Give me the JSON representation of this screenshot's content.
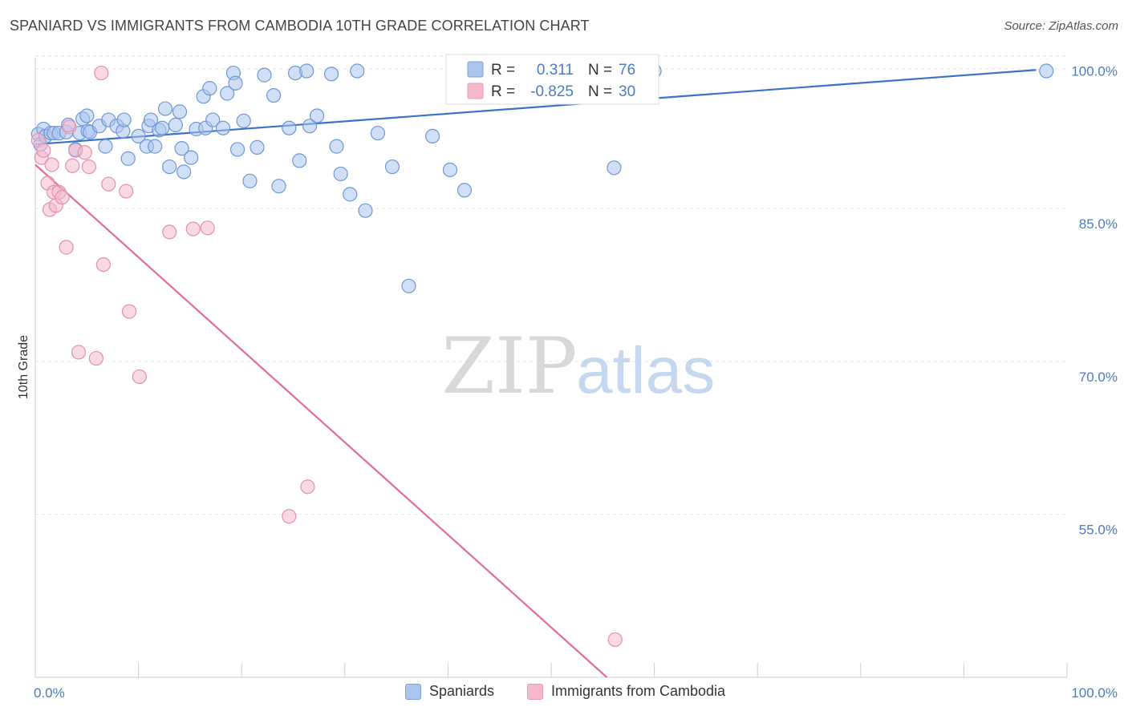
{
  "header": {
    "title": "SPANIARD VS IMMIGRANTS FROM CAMBODIA 10TH GRADE CORRELATION CHART",
    "source": "Source: ZipAtlas.com"
  },
  "watermark": {
    "zip": "ZIP",
    "atlas": "atlas"
  },
  "colors": {
    "blue": "#4a7cc4",
    "blue_fill": "#aac4ee",
    "blue_line": "#3a72c8",
    "pink_fill": "#f4b9cc",
    "pink_line": "#e46d96",
    "grid": "#e6e6e6"
  },
  "legend": {
    "rows": [
      {
        "r_label": "R =",
        "r_value": "0.311",
        "n_label": "N =",
        "n_value": "76"
      },
      {
        "r_label": "R =",
        "r_value": "-0.825",
        "n_label": "N =",
        "n_value": "30"
      }
    ]
  },
  "bottom_legend": [
    "Spaniards",
    "Immigrants from Cambodia"
  ],
  "chart_data": {
    "type": "scatter",
    "title": "SPANIARD VS IMMIGRANTS FROM CAMBODIA 10TH GRADE CORRELATION CHART",
    "xlabel": "",
    "ylabel": "10th Grade",
    "x_tick_labels": [
      "0.0%",
      "100.0%"
    ],
    "y_tick_labels": [
      "100.0%",
      "85.0%",
      "70.0%",
      "55.0%"
    ],
    "y_ticks": [
      100,
      85,
      70,
      55
    ],
    "xlim": [
      0,
      100
    ],
    "ylim": [
      40.5,
      101.3
    ],
    "grid": true,
    "series": [
      {
        "name": "Spaniards",
        "points": [
          [
            0.3,
            93.8
          ],
          [
            0.5,
            92.8
          ],
          [
            0.8,
            94.3
          ],
          [
            1.0,
            93.6
          ],
          [
            1.5,
            93.9
          ],
          [
            1.8,
            93.9
          ],
          [
            2.3,
            93.9
          ],
          [
            3.0,
            94.0
          ],
          [
            3.2,
            94.7
          ],
          [
            3.9,
            92.3
          ],
          [
            4.3,
            93.9
          ],
          [
            4.6,
            95.3
          ],
          [
            5.0,
            95.6
          ],
          [
            5.1,
            94.1
          ],
          [
            5.3,
            94.0
          ],
          [
            6.2,
            94.6
          ],
          [
            6.8,
            92.6
          ],
          [
            7.1,
            95.2
          ],
          [
            7.9,
            94.6
          ],
          [
            8.5,
            94.1
          ],
          [
            8.6,
            95.2
          ],
          [
            9.0,
            91.4
          ],
          [
            10.0,
            93.6
          ],
          [
            10.8,
            92.6
          ],
          [
            11.0,
            94.6
          ],
          [
            11.2,
            95.2
          ],
          [
            11.6,
            92.6
          ],
          [
            12.0,
            94.2
          ],
          [
            12.3,
            94.4
          ],
          [
            12.6,
            96.3
          ],
          [
            13.0,
            90.6
          ],
          [
            13.6,
            94.7
          ],
          [
            14.0,
            96.0
          ],
          [
            14.2,
            92.4
          ],
          [
            14.4,
            90.1
          ],
          [
            15.1,
            91.5
          ],
          [
            15.6,
            94.3
          ],
          [
            16.3,
            97.5
          ],
          [
            16.5,
            94.4
          ],
          [
            16.9,
            98.3
          ],
          [
            17.2,
            95.2
          ],
          [
            18.2,
            94.4
          ],
          [
            18.6,
            97.8
          ],
          [
            19.2,
            99.8
          ],
          [
            19.4,
            98.8
          ],
          [
            19.6,
            92.3
          ],
          [
            20.2,
            95.1
          ],
          [
            20.8,
            89.2
          ],
          [
            21.5,
            92.5
          ],
          [
            22.2,
            99.6
          ],
          [
            23.1,
            97.6
          ],
          [
            23.6,
            88.7
          ],
          [
            24.6,
            94.4
          ],
          [
            25.2,
            99.8
          ],
          [
            25.6,
            91.2
          ],
          [
            26.3,
            100.0
          ],
          [
            26.6,
            94.6
          ],
          [
            27.3,
            95.6
          ],
          [
            28.7,
            99.7
          ],
          [
            29.2,
            92.6
          ],
          [
            29.6,
            89.9
          ],
          [
            30.5,
            87.9
          ],
          [
            31.2,
            100.0
          ],
          [
            32.0,
            86.3
          ],
          [
            33.2,
            93.9
          ],
          [
            34.6,
            90.6
          ],
          [
            36.2,
            78.9
          ],
          [
            38.5,
            93.6
          ],
          [
            40.2,
            90.3
          ],
          [
            41.6,
            88.3
          ],
          [
            43.5,
            99.8
          ],
          [
            49.8,
            99.2
          ],
          [
            53.5,
            97.8
          ],
          [
            56.1,
            90.5
          ],
          [
            60.0,
            100.0
          ],
          [
            98.0,
            100.0
          ]
        ],
        "trend": {
          "x": [
            0,
            97
          ],
          "y": [
            92.8,
            100.1
          ]
        }
      },
      {
        "name": "Immigrants from Cambodia",
        "points": [
          [
            0.3,
            93.2
          ],
          [
            0.6,
            91.5
          ],
          [
            0.8,
            92.2
          ],
          [
            1.2,
            89.0
          ],
          [
            1.4,
            86.4
          ],
          [
            1.6,
            90.8
          ],
          [
            1.8,
            88.1
          ],
          [
            2.0,
            86.8
          ],
          [
            2.3,
            88.1
          ],
          [
            2.6,
            87.6
          ],
          [
            3.0,
            82.7
          ],
          [
            3.3,
            94.5
          ],
          [
            3.6,
            90.7
          ],
          [
            3.9,
            92.2
          ],
          [
            4.2,
            72.4
          ],
          [
            4.8,
            92.0
          ],
          [
            5.2,
            90.6
          ],
          [
            5.9,
            71.8
          ],
          [
            6.4,
            99.8
          ],
          [
            6.6,
            81.0
          ],
          [
            7.1,
            88.9
          ],
          [
            8.8,
            88.2
          ],
          [
            9.1,
            76.4
          ],
          [
            10.1,
            70.0
          ],
          [
            13.0,
            84.2
          ],
          [
            15.3,
            84.5
          ],
          [
            16.7,
            84.6
          ],
          [
            24.6,
            56.3
          ],
          [
            26.4,
            59.2
          ],
          [
            56.2,
            44.2
          ]
        ],
        "trend": {
          "x": [
            0,
            55.4
          ],
          "y": [
            90.8,
            40.5
          ]
        }
      }
    ]
  }
}
